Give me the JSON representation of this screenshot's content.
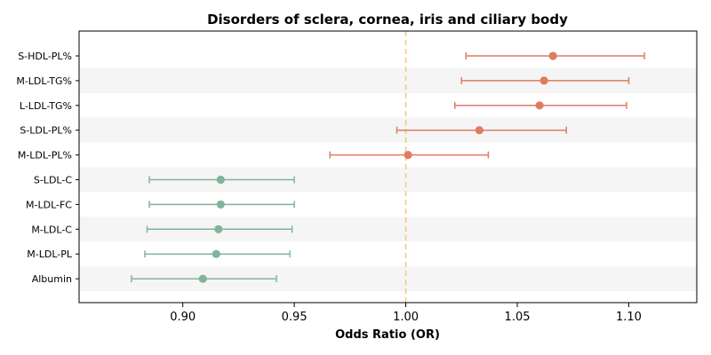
{
  "chart_data": {
    "type": "forest",
    "title": "Disorders of sclera, cornea, iris and ciliary body",
    "xlabel": "Odds Ratio (OR)",
    "xlim": [
      0.8535,
      1.1305
    ],
    "xticks": [
      0.9,
      0.95,
      1.0,
      1.05,
      1.1
    ],
    "xtick_labels": [
      "0.90",
      "0.95",
      "1.00",
      "1.05",
      "1.10"
    ],
    "reference_line": 1.0,
    "reference_line_style": "dashed",
    "row_banding": true,
    "colors": {
      "positive": "#e07b62",
      "negative": "#80b59c",
      "reference": "#f3c98a",
      "band": "#f5f5f5"
    },
    "rows": [
      {
        "label": "S-HDL-PL%",
        "or": 1.066,
        "lower": 1.027,
        "upper": 1.107
      },
      {
        "label": "M-LDL-TG%",
        "or": 1.062,
        "lower": 1.025,
        "upper": 1.1
      },
      {
        "label": "L-LDL-TG%",
        "or": 1.06,
        "lower": 1.022,
        "upper": 1.099
      },
      {
        "label": "S-LDL-PL%",
        "or": 1.033,
        "lower": 0.996,
        "upper": 1.072
      },
      {
        "label": "M-LDL-PL%",
        "or": 1.001,
        "lower": 0.966,
        "upper": 1.037
      },
      {
        "label": "S-LDL-C",
        "or": 0.917,
        "lower": 0.885,
        "upper": 0.95
      },
      {
        "label": "M-LDL-FC",
        "or": 0.917,
        "lower": 0.885,
        "upper": 0.95
      },
      {
        "label": "M-LDL-C",
        "or": 0.916,
        "lower": 0.884,
        "upper": 0.949
      },
      {
        "label": "M-LDL-PL",
        "or": 0.915,
        "lower": 0.883,
        "upper": 0.948
      },
      {
        "label": "Albumin",
        "or": 0.909,
        "lower": 0.877,
        "upper": 0.942
      }
    ]
  }
}
